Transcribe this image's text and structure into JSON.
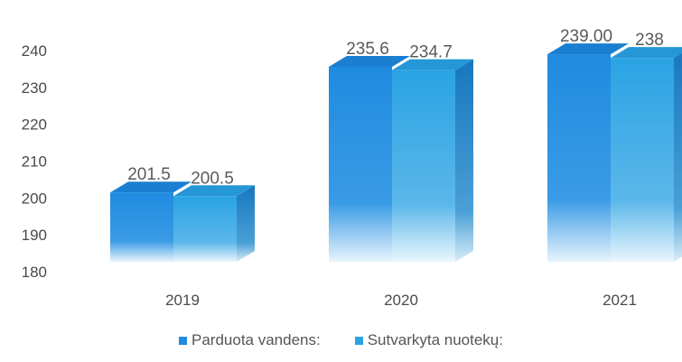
{
  "chart_data": {
    "type": "bar",
    "categories": [
      "2019",
      "2020",
      "2021"
    ],
    "series": [
      {
        "name": "Parduota vandens:",
        "values": [
          201.5,
          235.6,
          239.0
        ],
        "labels": [
          "201.5",
          "235.6",
          "239.00"
        ],
        "color": "#1f8be0"
      },
      {
        "name": "Sutvarkyta nuotekų:",
        "values": [
          200.5,
          234.7,
          238
        ],
        "labels": [
          "200.5",
          "234.7",
          "238"
        ],
        "color": "#2aa3e3"
      }
    ],
    "yticks": [
      "180",
      "190",
      "200",
      "210",
      "220",
      "230",
      "240"
    ],
    "ylim": [
      180,
      245
    ],
    "legend_position": "bottom",
    "grid": false
  }
}
